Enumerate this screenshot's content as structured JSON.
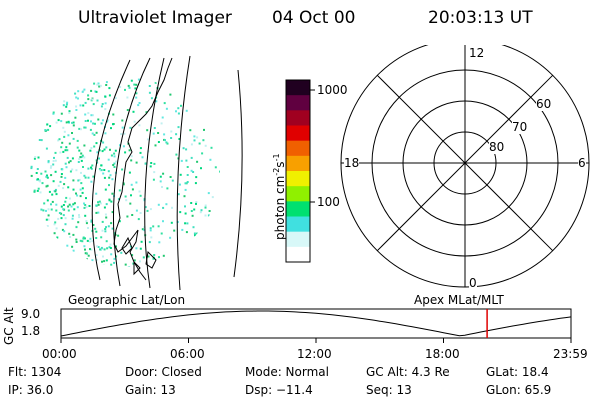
{
  "header": {
    "instrument": "Ultraviolet Imager",
    "date": "04 Oct 00",
    "time": "20:03:13 UT"
  },
  "colorbar": {
    "unit": "photon cm",
    "unit_exp1": "-2",
    "unit_s": "s",
    "unit_exp2": "-1",
    "ticks": [
      "1000",
      "100"
    ],
    "colors": [
      "#ffffff",
      "#d8f8f8",
      "#40e0e0",
      "#00e070",
      "#90f000",
      "#f0f000",
      "#f8a000",
      "#f06000",
      "#e00000",
      "#a00020",
      "#600040",
      "#200020"
    ]
  },
  "polar_plot": {
    "mlt_labels": {
      "top": "12",
      "bottom": "0",
      "left": "18",
      "right": "6"
    },
    "lat_labels": [
      "60",
      "70",
      "80"
    ]
  },
  "timeline": {
    "left_title": "Geographic Lat/Lon",
    "right_title": "Apex MLat/MLT",
    "y_axis_label": "GC Alt",
    "y_ticks": [
      "9.0",
      "1.8"
    ],
    "x_ticks": [
      "00:00",
      "06:00",
      "12:00",
      "18:00",
      "23:59"
    ],
    "marker_time_hours": 20.05,
    "marker_color": "#e00000"
  },
  "info": {
    "flt": "Flt: 1304",
    "ip": "IP: 36.0",
    "door": "Door: Closed",
    "gain": "Gain: 13",
    "mode": "Mode: Normal",
    "dsp": "Dsp: −11.4",
    "gcalt": "GC Alt: 4.3 Re",
    "seq": "Seq: 13",
    "glat": "GLat: 18.4",
    "glon": "GLon: 65.9"
  }
}
